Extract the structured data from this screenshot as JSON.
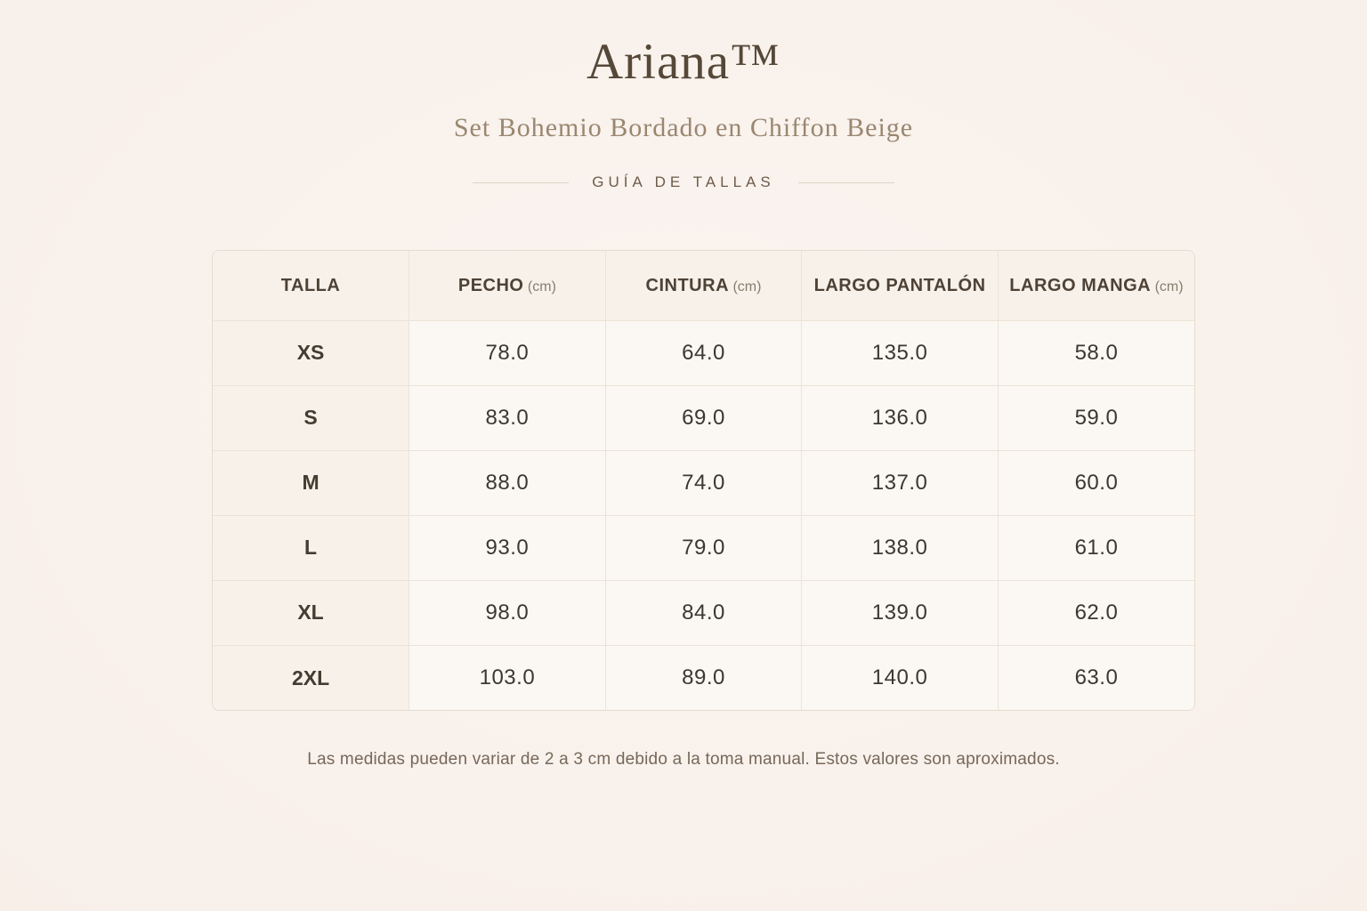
{
  "header": {
    "brand": "Ariana™",
    "product": "Set Bohemio Bordado en Chiffon Beige",
    "section_label": "GUÍA DE TALLAS"
  },
  "chart_data": {
    "type": "table",
    "title": "Ariana™ — Set Bohemio Bordado en Chiffon Beige — Guía de Tallas",
    "columns": [
      {
        "label": "TALLA",
        "unit": ""
      },
      {
        "label": "PECHO",
        "unit": "(cm)"
      },
      {
        "label": "CINTURA",
        "unit": "(cm)"
      },
      {
        "label": "LARGO PANTALÓN",
        "unit": ""
      },
      {
        "label": "LARGO MANGA",
        "unit": "(cm)"
      }
    ],
    "rows": [
      {
        "size": "XS",
        "values": [
          "78.0",
          "64.0",
          "135.0",
          "58.0"
        ]
      },
      {
        "size": "S",
        "values": [
          "83.0",
          "69.0",
          "136.0",
          "59.0"
        ]
      },
      {
        "size": "M",
        "values": [
          "88.0",
          "74.0",
          "137.0",
          "60.0"
        ]
      },
      {
        "size": "L",
        "values": [
          "93.0",
          "79.0",
          "138.0",
          "61.0"
        ]
      },
      {
        "size": "XL",
        "values": [
          "98.0",
          "84.0",
          "139.0",
          "62.0"
        ]
      },
      {
        "size": "2XL",
        "values": [
          "103.0",
          "89.0",
          "140.0",
          "63.0"
        ]
      }
    ]
  },
  "footer": {
    "note": "Las medidas pueden variar de 2 a 3 cm debido a la toma manual. Estos valores son aproximados."
  },
  "colors": {
    "page_background": "#f9f1ec",
    "title_text": "#564838",
    "subtitle_text": "#9a8770",
    "header_cell_background": "#f7f1ea",
    "data_cell_background": "#fbf7f2",
    "cell_border": "#ece3d8",
    "data_text": "#3b3731",
    "footnote_text": "#77685a"
  }
}
